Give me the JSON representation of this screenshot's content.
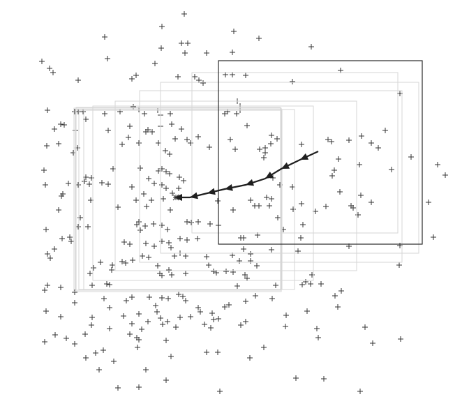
{
  "figure": {
    "point_marker": "plus",
    "colors": {
      "background": "#ffffff",
      "points": "#333333",
      "trajectory": "#1f1f1f",
      "current_window": "#2a2a2a",
      "previous_windows": "#d6d6d6"
    },
    "point_count": 212,
    "window_count": 11,
    "trajectory_direction": "leftward"
  }
}
